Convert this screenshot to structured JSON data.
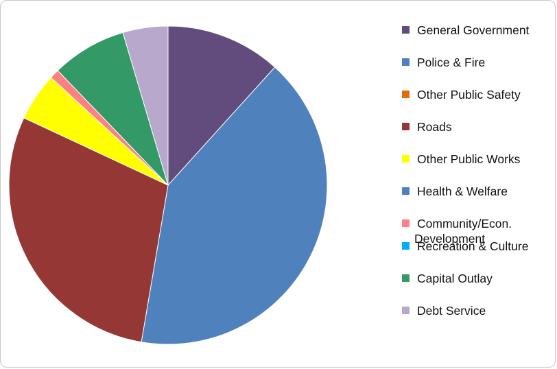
{
  "chart_data": {
    "type": "pie",
    "title": "",
    "legend_position": "right",
    "slices": [
      {
        "label": "General Government",
        "value": 12.0,
        "color": "#624b7d"
      },
      {
        "label": "Police & Fire",
        "value": 42.0,
        "color": "#4f81bd"
      },
      {
        "label": "Other Public Safety",
        "value": 0.0,
        "color": "#e36c0a"
      },
      {
        "label": "Roads",
        "value": 30.0,
        "color": "#953735"
      },
      {
        "label": "Other Public Works",
        "value": 5.0,
        "color": "#ffff00"
      },
      {
        "label": "Health & Welfare",
        "value": 0.0,
        "color": "#4f81bd"
      },
      {
        "label": "Community/Econ. Development",
        "value": 1.0,
        "color": "#ff8080"
      },
      {
        "label": "Recreation & Culture",
        "value": 0.0,
        "color": "#00b0f0"
      },
      {
        "label": "Capital Outlay",
        "value": 7.8,
        "color": "#339966"
      },
      {
        "label": "Debt Service",
        "value": 4.7,
        "color": "#b7a8cc"
      }
    ]
  },
  "legend": {
    "items": [
      {
        "line1": "General Government",
        "line2": ""
      },
      {
        "line1": "Police & Fire",
        "line2": ""
      },
      {
        "line1": "Other Public Safety",
        "line2": ""
      },
      {
        "line1": "Roads",
        "line2": ""
      },
      {
        "line1": "Other Public Works",
        "line2": ""
      },
      {
        "line1": "Health & Welfare",
        "line2": ""
      },
      {
        "line1": "Community/Econ.",
        "line2": "Development"
      },
      {
        "line1": "Recreation & Culture",
        "line2": ""
      },
      {
        "line1": "Capital Outlay",
        "line2": ""
      },
      {
        "line1": "Debt Service",
        "line2": ""
      }
    ]
  }
}
